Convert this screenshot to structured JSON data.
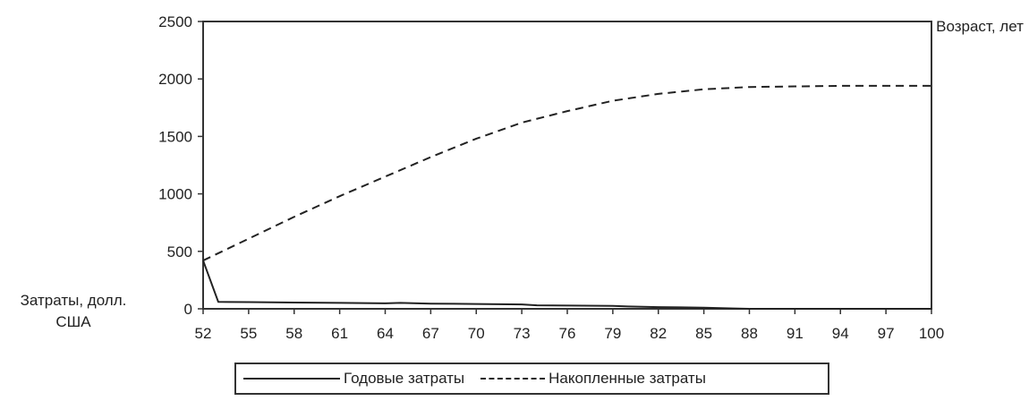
{
  "chart_data": {
    "type": "line",
    "ylabel": "Затраты, долл. США",
    "xlabel": "Возраст, лет",
    "ylim": [
      0,
      2500
    ],
    "yticks": [
      0,
      500,
      1000,
      1500,
      2000,
      2500
    ],
    "xlim": [
      52,
      100
    ],
    "xticks": [
      52,
      55,
      58,
      61,
      64,
      67,
      70,
      73,
      76,
      79,
      82,
      85,
      88,
      91,
      94,
      97,
      100
    ],
    "grid": false,
    "legend_position": "bottom",
    "series": [
      {
        "name": "Годовые затраты",
        "style": "solid",
        "x": [
          52,
          53,
          55,
          58,
          61,
          64,
          65,
          67,
          70,
          73,
          74,
          76,
          79,
          80,
          82,
          85,
          87,
          88,
          91,
          94,
          97,
          100
        ],
        "y": [
          420,
          60,
          58,
          55,
          52,
          48,
          52,
          45,
          42,
          38,
          30,
          28,
          25,
          20,
          15,
          10,
          3,
          0,
          0,
          0,
          0,
          0
        ]
      },
      {
        "name": "Накопленные затраты",
        "style": "dashed",
        "x": [
          52,
          55,
          58,
          61,
          64,
          67,
          70,
          73,
          76,
          79,
          82,
          85,
          88,
          91,
          94,
          97,
          100
        ],
        "y": [
          420,
          610,
          800,
          980,
          1150,
          1320,
          1480,
          1620,
          1720,
          1810,
          1870,
          1910,
          1930,
          1935,
          1940,
          1940,
          1940
        ]
      }
    ]
  }
}
